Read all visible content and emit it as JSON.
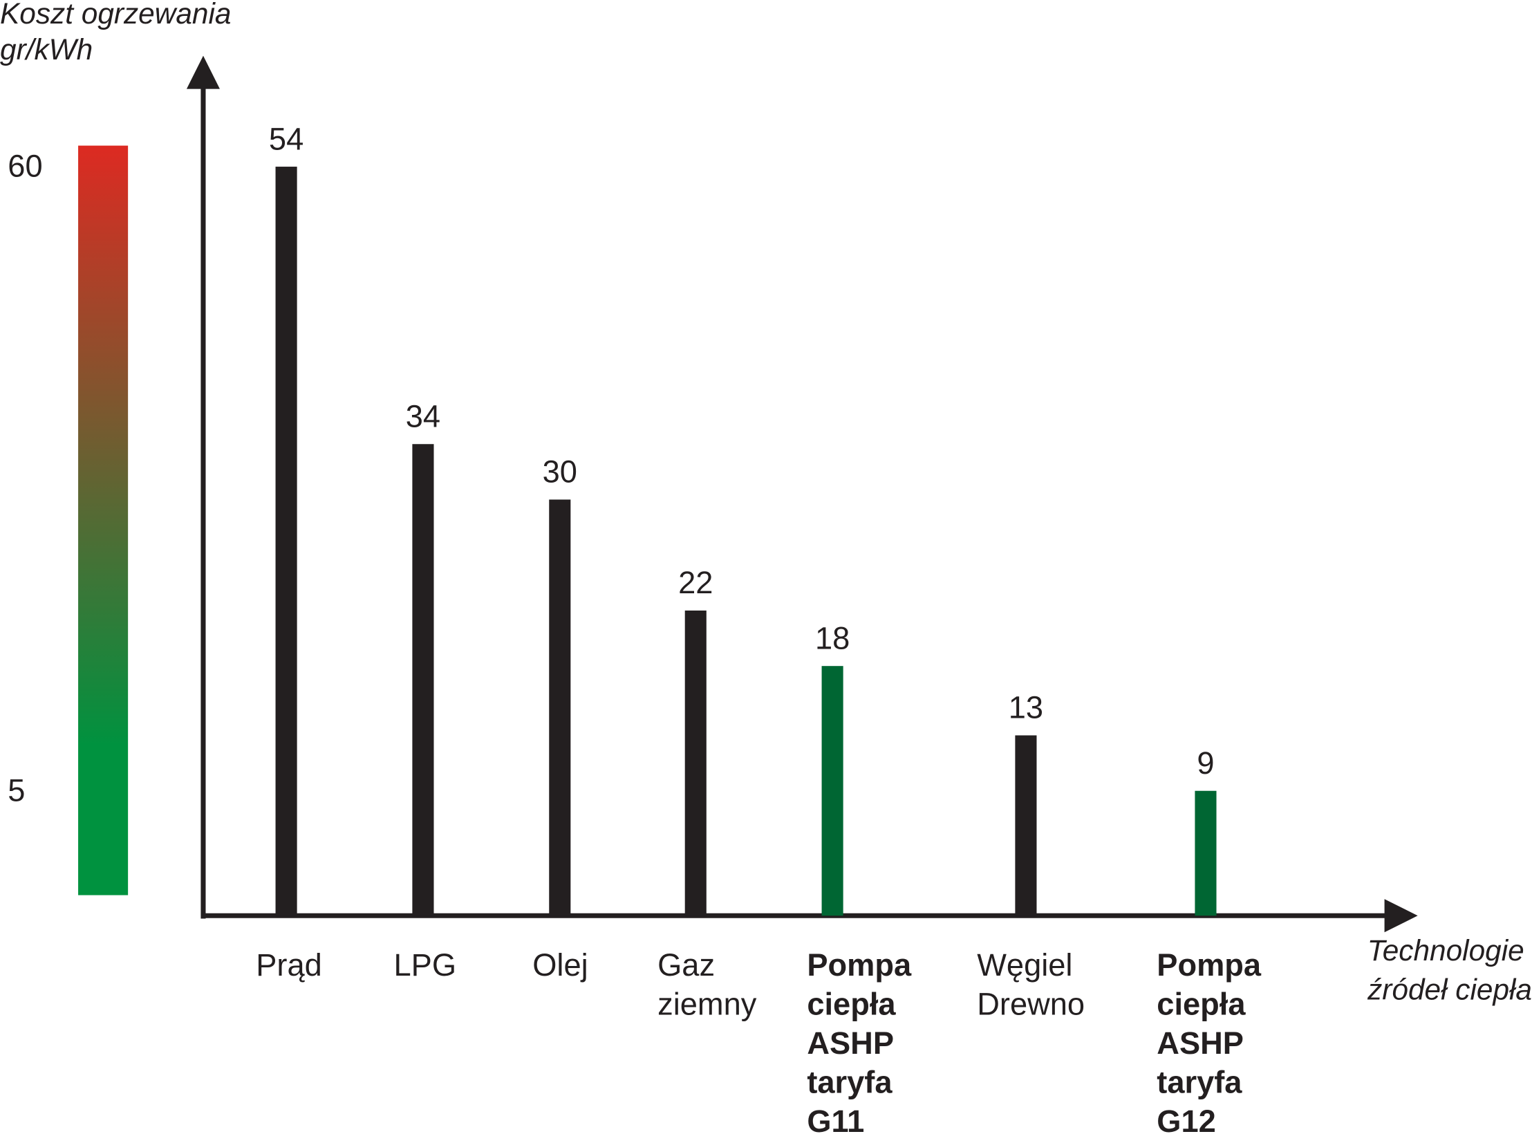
{
  "chart_data": {
    "type": "bar",
    "y_label": [
      "Koszt ogrzewania",
      "gr/kWh"
    ],
    "x_label": [
      "Technologie",
      "źródeł ciepła"
    ],
    "categories": [
      [
        "Prąd"
      ],
      [
        "LPG"
      ],
      [
        "Olej"
      ],
      [
        "Gaz",
        "ziemny"
      ],
      [
        "Pompa",
        "ciepła",
        "ASHP",
        "taryfa",
        "G11"
      ],
      [
        "Węgiel",
        "Drewno"
      ],
      [
        "Pompa",
        "ciepła",
        "ASHP",
        "taryfa",
        "G12"
      ]
    ],
    "category_bold": [
      false,
      false,
      false,
      false,
      true,
      false,
      true
    ],
    "values": [
      54,
      34,
      30,
      22,
      18,
      13,
      9
    ],
    "colors": [
      "#231f20",
      "#231f20",
      "#231f20",
      "#231f20",
      "#006633",
      "#231f20",
      "#006633"
    ],
    "ylim": [
      0,
      62
    ],
    "colorbar": {
      "colors": [
        "#dd2a22",
        "#00923f"
      ],
      "lim": [
        -4,
        62
      ],
      "ticks": [
        60,
        5
      ]
    }
  }
}
